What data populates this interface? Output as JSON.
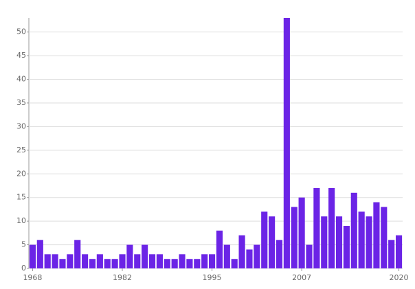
{
  "chart_data": {
    "type": "bar",
    "categories": [
      "1968",
      null,
      null,
      null,
      null,
      null,
      null,
      null,
      null,
      null,
      null,
      null,
      "1982",
      null,
      null,
      null,
      null,
      null,
      null,
      null,
      null,
      null,
      null,
      null,
      "1995",
      null,
      null,
      null,
      null,
      null,
      null,
      null,
      null,
      null,
      null,
      null,
      "2007",
      null,
      null,
      null,
      null,
      null,
      null,
      null,
      null,
      null,
      null,
      null,
      null,
      "2020"
    ],
    "values": [
      5,
      6,
      3,
      3,
      2,
      3,
      6,
      3,
      2,
      3,
      2,
      2,
      3,
      5,
      3,
      5,
      3,
      3,
      2,
      2,
      3,
      2,
      2,
      3,
      3,
      8,
      5,
      2,
      7,
      4,
      5,
      12,
      11,
      6,
      53,
      13,
      15,
      5,
      17,
      11,
      17,
      11,
      9,
      16,
      12,
      11,
      14,
      13,
      6,
      7
    ],
    "color": "#6b24e6",
    "ylim": [
      0,
      53
    ],
    "yticks": [
      0,
      5,
      10,
      15,
      20,
      25,
      30,
      35,
      40,
      45,
      50
    ],
    "grid": true
  }
}
